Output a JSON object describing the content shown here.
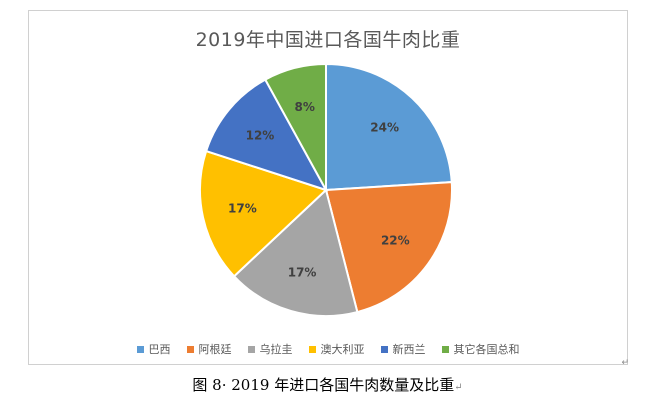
{
  "chart_data": {
    "type": "pie",
    "title": "2019年中国进口各国牛肉比重",
    "categories": [
      "巴西",
      "阿根廷",
      "乌拉圭",
      "澳大利亚",
      "新西兰",
      "其它各国总和"
    ],
    "values": [
      24,
      22,
      17,
      17,
      12,
      8
    ],
    "labels": [
      "24%",
      "22%",
      "17%",
      "17%",
      "12%",
      "8%"
    ],
    "colors": [
      "#5B9BD5",
      "#ED7D31",
      "#A5A5A5",
      "#FFC000",
      "#4472C4",
      "#70AD47"
    ],
    "start": "12 o'clock",
    "direction": "clockwise",
    "legend_position": "bottom"
  },
  "caption": "图 8· 2019 年进口各国牛肉数量及比重",
  "marks": {
    "return_glyph": "↵"
  }
}
